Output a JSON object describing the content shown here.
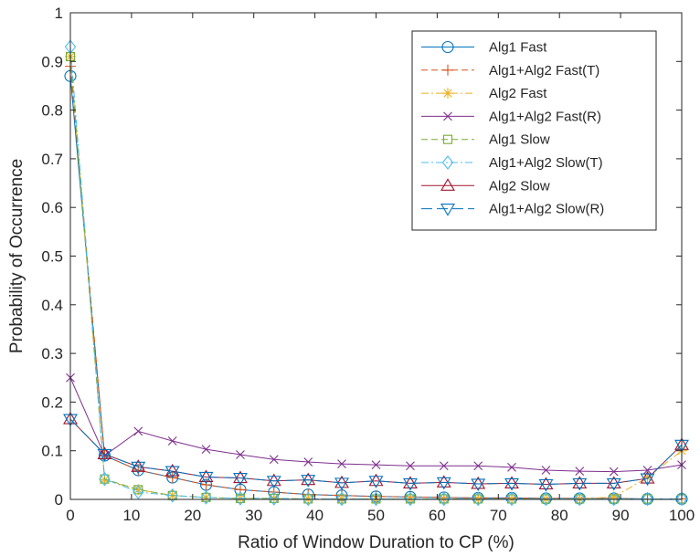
{
  "chart_data": {
    "type": "line",
    "xlabel": "Ratio of Window Duration to CP (%)",
    "ylabel": "Probability of Occurrence",
    "xlim": [
      0,
      100
    ],
    "ylim": [
      0,
      1
    ],
    "xticks": [
      "0",
      "10",
      "20",
      "30",
      "40",
      "50",
      "60",
      "70",
      "80",
      "90",
      "100"
    ],
    "yticks": [
      "0",
      "0.1",
      "0.2",
      "0.3",
      "0.4",
      "0.5",
      "0.6",
      "0.7",
      "0.8",
      "0.9",
      "1"
    ],
    "grid": false,
    "legend_position": "top-right",
    "x": [
      0,
      5.6,
      11.1,
      16.7,
      22.2,
      27.8,
      33.3,
      38.9,
      44.4,
      50,
      55.6,
      61.1,
      66.7,
      72.2,
      77.8,
      83.3,
      88.9,
      94.4,
      100
    ],
    "series": [
      {
        "name": "Alg1 Fast",
        "color": "#0072BD",
        "dash": "solid",
        "marker": "circle",
        "values": [
          0.87,
          0.09,
          0.06,
          0.045,
          0.03,
          0.02,
          0.015,
          0.01,
          0.008,
          0.006,
          0.005,
          0.004,
          0.003,
          0.003,
          0.002,
          0.002,
          0.002,
          0.001,
          0.001
        ]
      },
      {
        "name": "Alg1+Alg2 Fast(T)",
        "color": "#D95319",
        "dash": "dashed",
        "marker": "plus",
        "values": [
          0.89,
          0.09,
          0.06,
          0.045,
          0.03,
          0.02,
          0.015,
          0.01,
          0.008,
          0.006,
          0.005,
          0.004,
          0.003,
          0.003,
          0.002,
          0.002,
          0.002,
          0.001,
          0.001
        ]
      },
      {
        "name": "Alg2 Fast",
        "color": "#EDB120",
        "dash": "dashdot",
        "marker": "asterisk",
        "values": [
          0.91,
          0.04,
          0.02,
          0.008,
          0.004,
          0.002,
          0.002,
          0.001,
          0.001,
          0.001,
          0.001,
          0.001,
          0.001,
          0.001,
          0.001,
          0.001,
          0.005,
          0.045,
          0.1
        ]
      },
      {
        "name": "Alg1+Alg2 Fast(R)",
        "color": "#7E2F8E",
        "dash": "solid",
        "marker": "x",
        "values": [
          0.25,
          0.09,
          0.14,
          0.12,
          0.103,
          0.092,
          0.082,
          0.077,
          0.073,
          0.071,
          0.069,
          0.069,
          0.069,
          0.066,
          0.06,
          0.058,
          0.057,
          0.06,
          0.071
        ]
      },
      {
        "name": "Alg1 Slow",
        "color": "#77AC30",
        "dash": "dashed",
        "marker": "square",
        "values": [
          0.91,
          0.042,
          0.02,
          0.008,
          0.004,
          0.002,
          0.002,
          0.001,
          0.001,
          0.001,
          0.001,
          0.001,
          0.001,
          0.001,
          0.001,
          0.001,
          0.001,
          0.001,
          0.001
        ]
      },
      {
        "name": "Alg1+Alg2 Slow(T)",
        "color": "#4DBEEE",
        "dash": "dashdot",
        "marker": "diamond",
        "values": [
          0.93,
          0.042,
          0.015,
          0.008,
          0.004,
          0.002,
          0.002,
          0.001,
          0.001,
          0.001,
          0.001,
          0.001,
          0.001,
          0.001,
          0.001,
          0.001,
          0.001,
          0.001,
          0.001
        ]
      },
      {
        "name": "Alg2 Slow",
        "color": "#A2142F",
        "dash": "solid",
        "marker": "triangle-up",
        "values": [
          0.165,
          0.093,
          0.067,
          0.058,
          0.046,
          0.044,
          0.038,
          0.04,
          0.034,
          0.038,
          0.033,
          0.035,
          0.032,
          0.033,
          0.031,
          0.033,
          0.033,
          0.043,
          0.112
        ]
      },
      {
        "name": "Alg1+Alg2 Slow(R)",
        "color": "#0072BD",
        "dash": "longdash",
        "marker": "triangle-down",
        "values": [
          0.165,
          0.093,
          0.067,
          0.058,
          0.046,
          0.044,
          0.038,
          0.04,
          0.034,
          0.038,
          0.033,
          0.035,
          0.032,
          0.033,
          0.031,
          0.033,
          0.033,
          0.043,
          0.112
        ]
      }
    ]
  }
}
